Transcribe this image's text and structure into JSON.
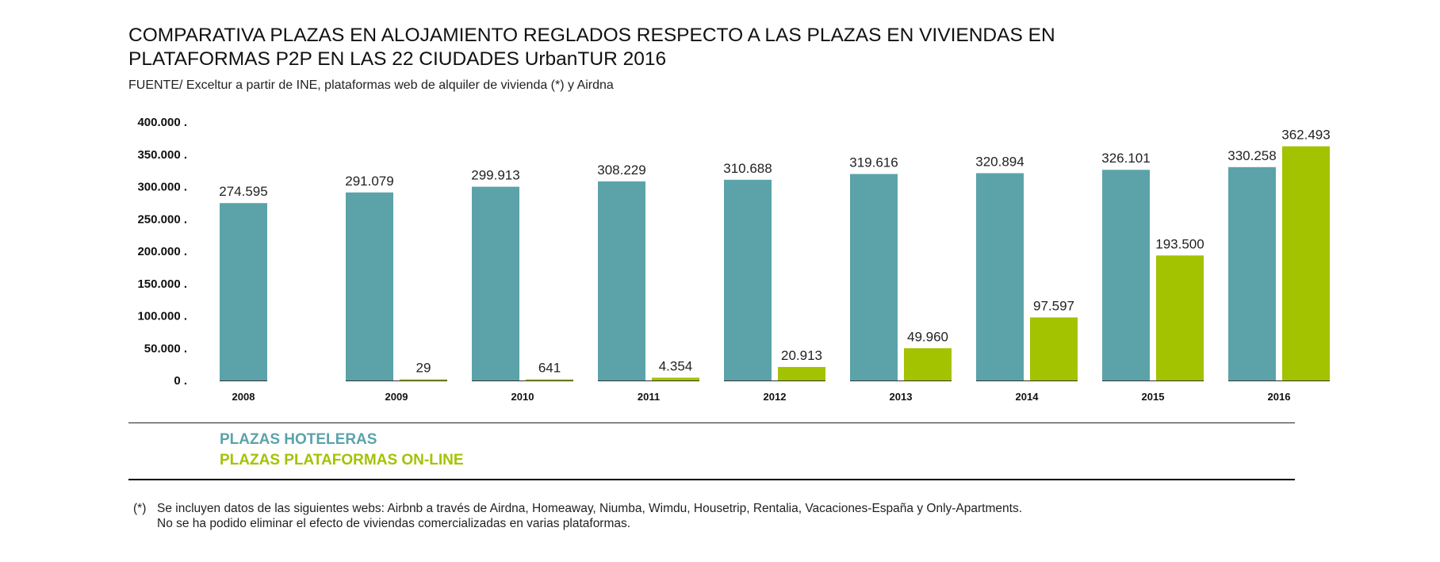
{
  "title_lines": [
    "COMPARATIVA PLAZAS EN ALOJAMIENTO REGLADOS RESPECTO A LAS PLAZAS EN VIVIENDAS EN",
    "PLATAFORMAS P2P EN LAS 22 CIUDADES UrbanTUR 2016"
  ],
  "source": "FUENTE/ Exceltur a partir de INE, plataformas web de alquiler de vivienda (*) y Airdna",
  "legend": {
    "hoteleras": "PLAZAS HOTELERAS",
    "online": "PLAZAS PLATAFORMAS ON-LINE"
  },
  "footnote": {
    "mark": "(*)",
    "lines": [
      "Se incluyen datos de las siguientes webs: Airbnb a través de Airdna, Homeaway, Niumba, Wimdu, Housetrip, Rentalia, Vacaciones-España y Only-Apartments.",
      "No se ha podido eliminar el efecto de viviendas comercializadas en varias plataformas."
    ]
  },
  "chart_data": {
    "type": "bar",
    "categories": [
      "2008",
      "2009",
      "2010",
      "2011",
      "2012",
      "2013",
      "2014",
      "2015",
      "2016"
    ],
    "series": [
      {
        "name": "PLAZAS HOTELERAS",
        "color": "#5ba3a9",
        "values": [
          274595,
          291079,
          299913,
          308229,
          310688,
          319616,
          320894,
          326101,
          330258
        ],
        "labels": [
          "274.595",
          "291.079",
          "299.913",
          "308.229",
          "310.688",
          "319.616",
          "320.894",
          "326.101",
          "330.258"
        ]
      },
      {
        "name": "PLAZAS PLATAFORMAS ON-LINE",
        "color": "#a3c300",
        "values": [
          null,
          29,
          641,
          4354,
          20913,
          49960,
          97597,
          193500,
          362493
        ],
        "labels": [
          "",
          "29",
          "641",
          "4.354",
          "20.913",
          "49.960",
          "97.597",
          "193.500",
          "362.493"
        ]
      }
    ],
    "yticks": [
      "0 .",
      "50.000 .",
      "100.000 .",
      "150.000 .",
      "200.000 .",
      "250.000 .",
      "300.000 .",
      "350.000 .",
      "400.000 ."
    ],
    "ylim": [
      0,
      400000
    ],
    "grid": false,
    "legend_position": "bottom-left"
  }
}
